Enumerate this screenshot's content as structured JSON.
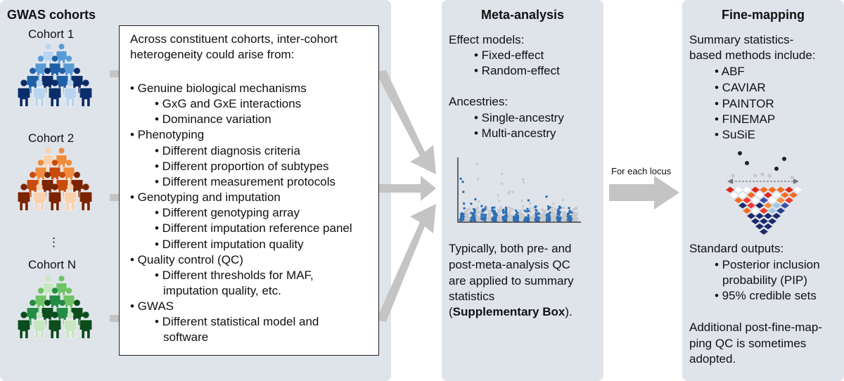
{
  "gwas": {
    "title": "GWAS cohorts",
    "cohort1": "Cohort 1",
    "cohort2": "Cohort 2",
    "dots": "⋮",
    "cohortN": "Cohort N",
    "colors": {
      "cohort1": [
        "#b9d4ee",
        "#5b9bd5",
        "#1f5fa8",
        "#0b2e6b"
      ],
      "cohort2": [
        "#fbd1ad",
        "#f08a3c",
        "#c74b0a",
        "#7a2400"
      ],
      "cohortN": [
        "#c7e6c2",
        "#6fc266",
        "#238b45",
        "#0b4d1e"
      ]
    }
  },
  "heterogeneity": {
    "intro": [
      "Across constituent cohorts, inter-cohort",
      "heterogeneity could arise from:"
    ],
    "items": [
      {
        "text": "• Genuine biological mechanisms",
        "level": 0
      },
      {
        "text": "• GxG and GxE interactions",
        "level": 1
      },
      {
        "text": "• Dominance variation",
        "level": 1
      },
      {
        "text": "• Phenotyping",
        "level": 0
      },
      {
        "text": "• Different diagnosis criteria",
        "level": 1
      },
      {
        "text": "• Different proportion of subtypes",
        "level": 1
      },
      {
        "text": "• Different measurement protocols",
        "level": 1
      },
      {
        "text": "• Genotyping and imputation",
        "level": 0
      },
      {
        "text": "• Different genotyping array",
        "level": 1
      },
      {
        "text": "• Different imputation reference panel",
        "level": 1
      },
      {
        "text": "• Different imputation quality",
        "level": 1
      },
      {
        "text": "• Quality control (QC)",
        "level": 0
      },
      {
        "text": "• Different thresholds for MAF,",
        "level": 1
      },
      {
        "text": "imputation quality, etc.",
        "level": 2
      },
      {
        "text": "• GWAS",
        "level": 0
      },
      {
        "text": "• Different statistical model and",
        "level": 1
      },
      {
        "text": "software",
        "level": 2
      }
    ]
  },
  "meta": {
    "title": "Meta-analysis",
    "effect_heading": "Effect models:",
    "effect_items": [
      "• Fixed-effect",
      "• Random-effect"
    ],
    "ancestry_heading": "Ancestries:",
    "ancestry_items": [
      "• Single-ancestry",
      "• Multi-ancestry"
    ],
    "qc_lines": [
      "Typically, both pre- and",
      "post-meta-analysis QC",
      "are applied to summary",
      "statistics"
    ],
    "qc_open": "(",
    "qc_bold": "Supplementary Box",
    "qc_close": ")."
  },
  "arrow_label": "For each locus",
  "fine": {
    "title": "Fine-mapping",
    "intro": [
      "Summary statistics-",
      "based methods include:"
    ],
    "methods": [
      "• ABF",
      "• CAVIAR",
      "• PAINTOR",
      "• FINEMAP",
      "• SuSiE"
    ],
    "outputs_heading": "Standard outputs:",
    "outputs": [
      "• Posterior inclusion",
      "probability (PIP)",
      "• 95% credible sets"
    ],
    "additional": [
      "Additional post-fine-map-",
      "ping QC is sometimes",
      "adopted."
    ]
  }
}
